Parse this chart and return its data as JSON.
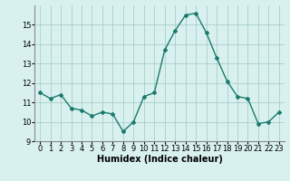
{
  "x": [
    0,
    1,
    2,
    3,
    4,
    5,
    6,
    7,
    8,
    9,
    10,
    11,
    12,
    13,
    14,
    15,
    16,
    17,
    18,
    19,
    20,
    21,
    22,
    23
  ],
  "y": [
    11.5,
    11.2,
    11.4,
    10.7,
    10.6,
    10.3,
    10.5,
    10.4,
    9.5,
    10.0,
    11.3,
    11.5,
    13.7,
    14.7,
    15.5,
    15.6,
    14.6,
    13.3,
    12.1,
    11.3,
    11.2,
    9.9,
    10.0,
    10.5
  ],
  "line_color": "#1a7a6e",
  "marker": "D",
  "marker_size": 2,
  "bg_color": "#d8f0ee",
  "grid_color": "#a0c8c4",
  "xlabel": "Humidex (Indice chaleur)",
  "xlim": [
    -0.5,
    23.5
  ],
  "ylim": [
    9,
    16
  ],
  "yticks": [
    9,
    10,
    11,
    12,
    13,
    14,
    15
  ],
  "xticks": [
    0,
    1,
    2,
    3,
    4,
    5,
    6,
    7,
    8,
    9,
    10,
    11,
    12,
    13,
    14,
    15,
    16,
    17,
    18,
    19,
    20,
    21,
    22,
    23
  ],
  "xlabel_fontsize": 7,
  "tick_fontsize": 6,
  "linewidth": 1.0
}
